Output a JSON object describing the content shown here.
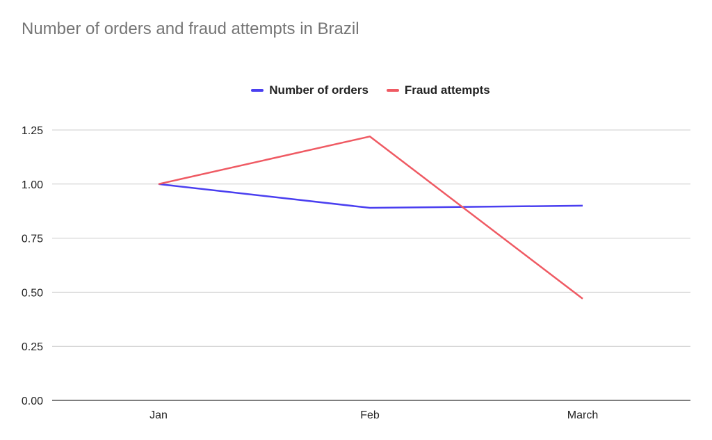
{
  "chart_data": {
    "type": "line",
    "title": "Number of orders and fraud attempts in Brazil",
    "xlabel": "",
    "ylabel": "",
    "categories": [
      "Jan",
      "Feb",
      "March"
    ],
    "series": [
      {
        "name": "Number of orders",
        "values": [
          1.0,
          0.89,
          0.9
        ],
        "color": "#4a3ff0"
      },
      {
        "name": "Fraud attempts",
        "values": [
          1.0,
          1.22,
          0.47
        ],
        "color": "#ef5a63"
      }
    ],
    "ylim": [
      0,
      1.25
    ],
    "yticks": [
      "0.00",
      "0.25",
      "0.50",
      "0.75",
      "1.00",
      "1.25"
    ],
    "ytick_values": [
      0,
      0.25,
      0.5,
      0.75,
      1.0,
      1.25
    ],
    "grid": true,
    "legend_position": "top-center"
  }
}
